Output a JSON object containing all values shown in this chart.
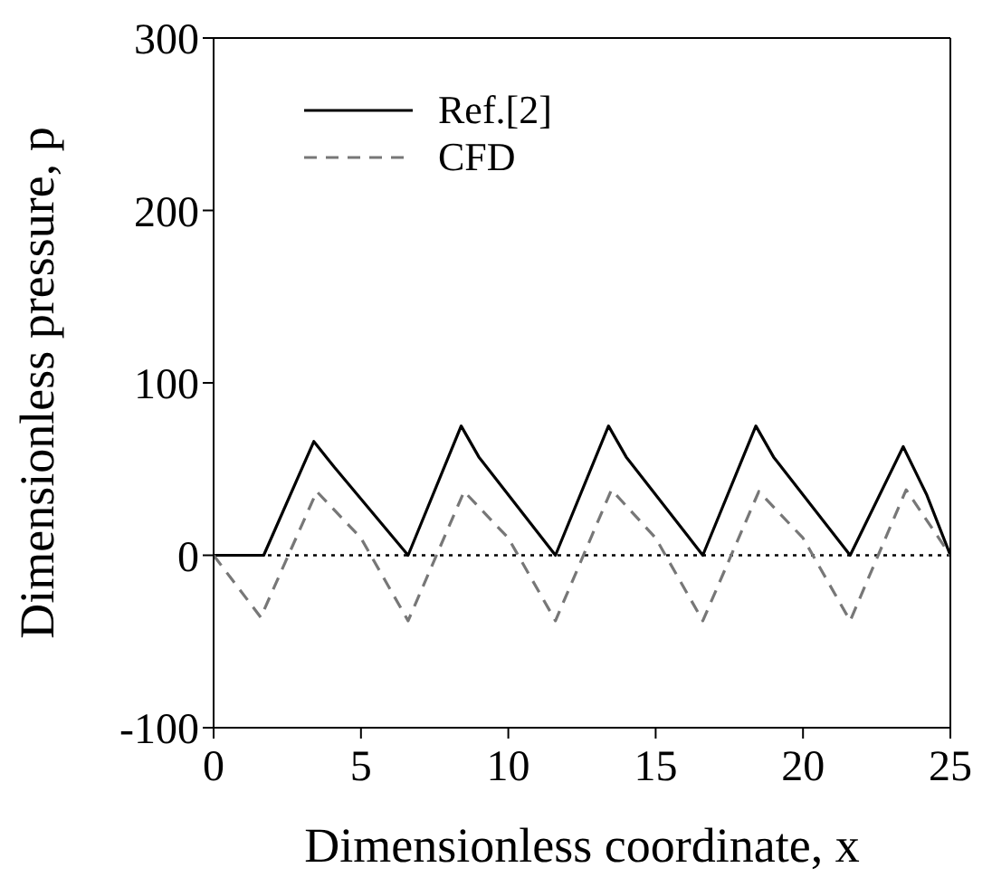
{
  "chart_data": {
    "type": "line",
    "xlabel": "Dimensionless coordinate, x",
    "ylabel": "Dimensionless pressure, p",
    "xlim": [
      0,
      25
    ],
    "xticks": [
      0,
      5,
      10,
      15,
      20,
      25
    ],
    "ylim": [
      -100,
      300
    ],
    "yticks": [
      -100,
      0,
      100,
      200,
      300
    ],
    "grid": false,
    "legend": "top left",
    "marker": "none",
    "ref_lines": [
      {
        "axis": "y",
        "value": 0,
        "color": "#000000",
        "line_style": "dotted"
      }
    ],
    "series": [
      {
        "name": "Ref.[2]",
        "color": "#000000",
        "line_style": "solid",
        "x": [
          0,
          1.7,
          3.4,
          4.1,
          6.6,
          8.4,
          9.0,
          11.6,
          13.4,
          14.0,
          16.6,
          18.4,
          19.0,
          21.6,
          23.4,
          24.2,
          25
        ],
        "values": [
          0,
          0,
          66,
          51,
          0,
          75,
          57,
          0,
          75,
          57,
          0,
          75,
          57,
          0,
          63,
          35,
          0
        ]
      },
      {
        "name": "CFD",
        "color": "#777777",
        "line_style": "dashed",
        "x": [
          0,
          1.6,
          3.5,
          5.0,
          6.6,
          8.5,
          10.0,
          11.6,
          13.5,
          15.0,
          16.6,
          18.5,
          20.0,
          21.6,
          23.5,
          25
        ],
        "values": [
          0,
          -36,
          37,
          10,
          -38,
          37,
          10,
          -38,
          38,
          10,
          -38,
          37,
          10,
          -38,
          38,
          0
        ]
      }
    ]
  }
}
